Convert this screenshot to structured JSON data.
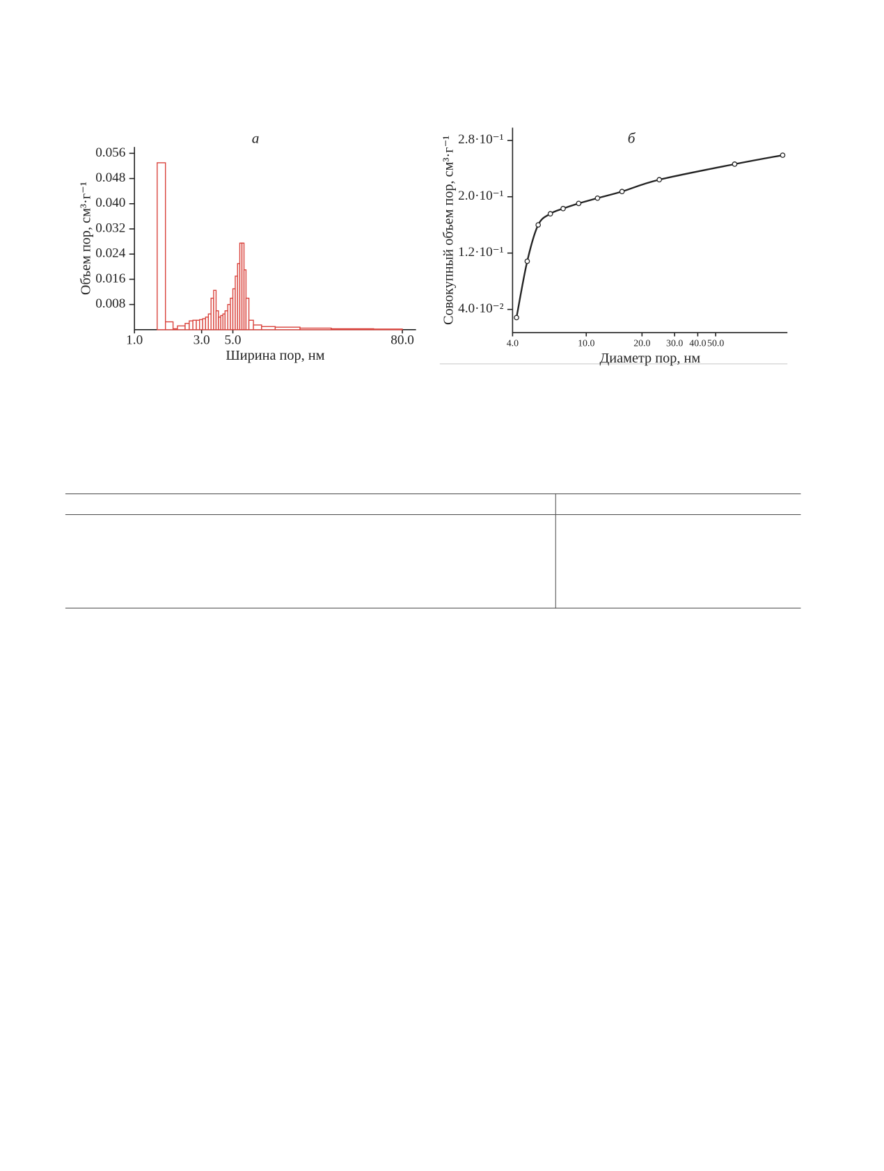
{
  "chart_data": [
    {
      "type": "histogram",
      "title": "а",
      "x_label": "Ширина пор, нм",
      "y_label": "Объем пор, см³·г⁻¹",
      "color": "#d9413a",
      "x_scale": "log",
      "bins": [
        1.45,
        1.66,
        1.88,
        2.02,
        2.29,
        2.45,
        2.6,
        2.75,
        2.9,
        3.05,
        3.2,
        3.35,
        3.5,
        3.65,
        3.8,
        3.95,
        4.1,
        4.25,
        4.4,
        4.6,
        4.8,
        5.0,
        5.2,
        5.4,
        5.6,
        5.8,
        6.0,
        6.2,
        6.5,
        7.0,
        8.0,
        10,
        15,
        25,
        50,
        80
      ],
      "values": [
        0.053,
        0.0025,
        0.0003,
        0.0012,
        0.002,
        0.0028,
        0.003,
        0.003,
        0.0032,
        0.0035,
        0.004,
        0.005,
        0.01,
        0.0125,
        0.006,
        0.004,
        0.0045,
        0.005,
        0.006,
        0.008,
        0.01,
        0.013,
        0.017,
        0.021,
        0.0275,
        0.0275,
        0.019,
        0.01,
        0.003,
        0.0015,
        0.001,
        0.0008,
        0.0005,
        0.0003,
        0.0002
      ],
      "xlim": [
        1,
        100
      ],
      "ylim": [
        0,
        0.058
      ],
      "xticks": [
        {
          "value": 1,
          "label": "1.0"
        },
        {
          "value": 3,
          "label": "3.0"
        },
        {
          "value": 5,
          "label": "5.0"
        },
        {
          "value": 80,
          "label": "80.0"
        }
      ],
      "yticks": [
        0.008,
        0.016,
        0.024,
        0.032,
        {
          "value": 0.04,
          "label": "0.040"
        },
        0.048,
        0.056
      ]
    },
    {
      "type": "line",
      "title": "б",
      "x_label": "Диаметр пор, нм",
      "y_label": "Совокупный объем пор, см³·г⁻¹",
      "color": "#222222",
      "x_scale": "log",
      "markers": true,
      "x": [
        4.2,
        4.8,
        5.5,
        6.4,
        7.5,
        9.1,
        11.5,
        15.6,
        24.8,
        63.3,
        115
      ],
      "values": [
        0.0284,
        0.1084,
        0.16,
        0.1758,
        0.1832,
        0.1905,
        0.198,
        0.2074,
        0.2242,
        0.2463,
        0.259
      ],
      "xlim": [
        4,
        122
      ],
      "ylim": [
        0.007,
        0.298
      ],
      "xticks": [
        {
          "value": 4,
          "label": "4.0"
        },
        {
          "value": 10,
          "label": "10.0"
        },
        {
          "value": 20,
          "label": "20.0"
        },
        {
          "value": 30,
          "label": "30.0"
        },
        {
          "value": 40,
          "label": "40.0"
        },
        {
          "value": 50,
          "label": "50.0"
        }
      ],
      "yticks": [
        {
          "value": 0.04,
          "label": "4.0·10⁻²"
        },
        {
          "value": 0.12,
          "label": "1.2·10⁻¹"
        },
        {
          "value": 0.2,
          "label": "2.0·10⁻¹"
        },
        {
          "value": 0.28,
          "label": "2.8·10⁻¹"
        }
      ]
    }
  ]
}
